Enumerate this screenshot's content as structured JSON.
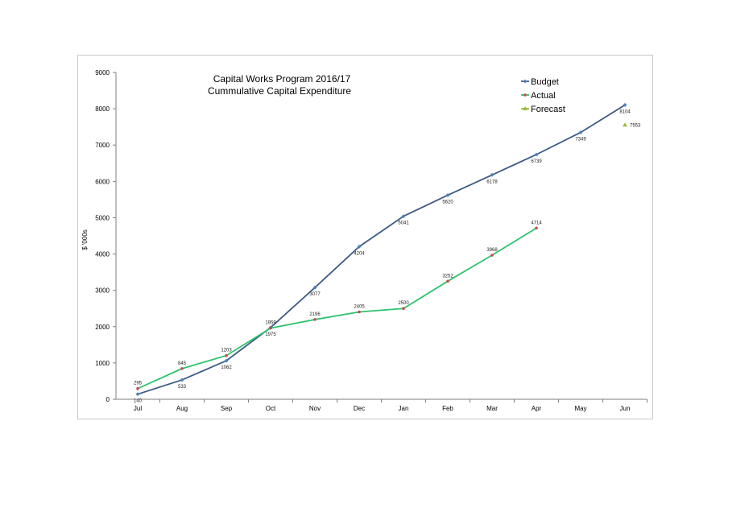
{
  "chart_data": {
    "type": "line",
    "title_lines": [
      "Capital Works Program 2016/17",
      "Cummulative Capital Expenditure"
    ],
    "xlabel": "",
    "ylabel": "$ '000s",
    "ylim": [
      0,
      9000
    ],
    "yticks": [
      0,
      1000,
      2000,
      3000,
      4000,
      5000,
      6000,
      7000,
      8000,
      9000
    ],
    "categories": [
      "Jul",
      "Aug",
      "Sep",
      "Oct",
      "Nov",
      "Dec",
      "Jan",
      "Feb",
      "Mar",
      "Apr",
      "May",
      "Jun"
    ],
    "grid": false,
    "legend_position": "top-right",
    "series": [
      {
        "name": "Budget",
        "color": "#3c5a85",
        "marker": "diamond",
        "values": [
          140,
          533,
          1062,
          1975,
          3077,
          4204,
          5041,
          5620,
          6178,
          6739,
          7349,
          8104
        ],
        "labels": [
          "140",
          "533",
          "1062",
          "1975",
          "3077",
          "4204",
          "5041",
          "5620",
          "6178",
          "6739",
          "7349",
          "8104"
        ]
      },
      {
        "name": "Actual",
        "color": "#2ec46e",
        "marker": "circle",
        "values": [
          295,
          845,
          1203,
          1959,
          2196,
          2405,
          2500,
          3252,
          3968,
          4714,
          null,
          null
        ],
        "labels": [
          "295",
          "845",
          "1203",
          "1959",
          "2196",
          "2405",
          "2500",
          "3252",
          "3968",
          "4714",
          "",
          ""
        ]
      },
      {
        "name": "Forecast",
        "color": "#9bbb3b",
        "marker": "triangle",
        "values": [
          null,
          null,
          null,
          null,
          null,
          null,
          null,
          null,
          null,
          null,
          null,
          7553
        ],
        "labels": [
          "",
          "",
          "",
          "",
          "",
          "",
          "",
          "",
          "",
          "",
          "",
          "7553"
        ]
      }
    ]
  }
}
